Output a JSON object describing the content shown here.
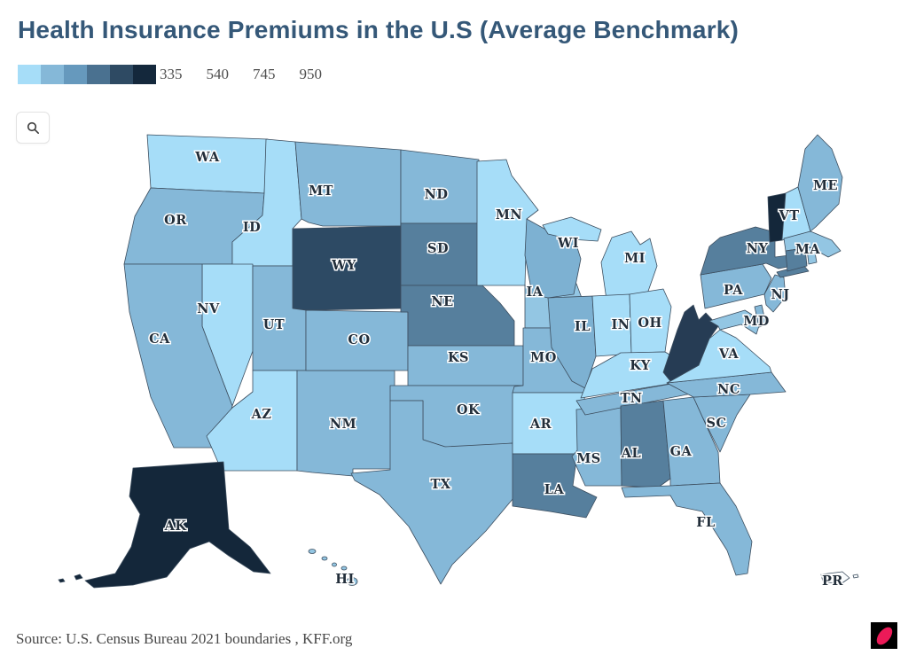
{
  "header": {
    "title": "Health Insurance Premiums in the U.S (Average Benchmark)"
  },
  "legend": {
    "colors": [
      "#a6ddf8",
      "#85b8d8",
      "#6699bd",
      "#4a7190",
      "#2e4a63",
      "#14283c"
    ],
    "labels": [
      "335",
      "540",
      "745",
      "950"
    ]
  },
  "toolbar": {
    "zoom_icon": "magnifier"
  },
  "footer": {
    "source": "Source: U.S. Census Bureau 2021 boundaries , KFF.org"
  },
  "logo": {
    "bg_color": "#000000",
    "dot_color": "#ec1a58"
  },
  "map": {
    "border_color": "#3c4d5e",
    "label_color": "#222e3a",
    "states": [
      {
        "code": "WA",
        "fill": "#a6ddf8",
        "label": [
          234,
          177
        ]
      },
      {
        "code": "OR",
        "fill": "#85b8d8",
        "label": [
          198,
          248
        ]
      },
      {
        "code": "CA",
        "fill": "#85b8d8",
        "label": [
          180,
          382
        ]
      },
      {
        "code": "NV",
        "fill": "#a6ddf8",
        "label": [
          235,
          348
        ]
      },
      {
        "code": "ID",
        "fill": "#a6ddf8",
        "label": [
          284,
          256
        ]
      },
      {
        "code": "MT",
        "fill": "#85b8d8",
        "label": [
          362,
          215
        ]
      },
      {
        "code": "WY",
        "fill": "#2d4a64",
        "label": [
          388,
          299
        ]
      },
      {
        "code": "UT",
        "fill": "#85b8d8",
        "label": [
          309,
          366
        ]
      },
      {
        "code": "AZ",
        "fill": "#a6ddf8",
        "label": [
          295,
          467
        ]
      },
      {
        "code": "CO",
        "fill": "#85b8d8",
        "label": [
          405,
          383
        ]
      },
      {
        "code": "NM",
        "fill": "#85b8d8",
        "label": [
          387,
          478
        ]
      },
      {
        "code": "ND",
        "fill": "#85b8d8",
        "label": [
          492,
          219
        ]
      },
      {
        "code": "SD",
        "fill": "#567f9d",
        "label": [
          494,
          280
        ]
      },
      {
        "code": "NE",
        "fill": "#567f9d",
        "label": [
          499,
          340
        ]
      },
      {
        "code": "KS",
        "fill": "#85b8d8",
        "label": [
          517,
          403
        ]
      },
      {
        "code": "OK",
        "fill": "#85b8d8",
        "label": [
          528,
          462
        ]
      },
      {
        "code": "TX",
        "fill": "#85b8d8",
        "label": [
          497,
          546
        ]
      },
      {
        "code": "MN",
        "fill": "#a6ddf8",
        "label": [
          574,
          242
        ]
      },
      {
        "code": "IA",
        "fill": "#93c6e3",
        "label": [
          603,
          329
        ]
      },
      {
        "code": "MO",
        "fill": "#85b8d8",
        "label": [
          613,
          403
        ]
      },
      {
        "code": "AR",
        "fill": "#a6ddf8",
        "label": [
          610,
          478
        ]
      },
      {
        "code": "LA",
        "fill": "#567f9d",
        "label": [
          625,
          552
        ]
      },
      {
        "code": "WI",
        "fill": "#7db1d2",
        "label": [
          641,
          274
        ]
      },
      {
        "code": "IL",
        "fill": "#7db1d2",
        "label": [
          657,
          368
        ]
      },
      {
        "code": "MS",
        "fill": "#85b8d8",
        "label": [
          664,
          517
        ]
      },
      {
        "code": "MI",
        "fill": "#a6ddf8",
        "label": [
          716,
          291
        ]
      },
      {
        "code": "IN",
        "fill": "#a6ddf8",
        "label": [
          700,
          366
        ]
      },
      {
        "code": "KY",
        "fill": "#a6ddf8",
        "label": [
          722,
          412
        ]
      },
      {
        "code": "TN",
        "fill": "#85b8d8",
        "label": [
          712,
          449
        ]
      },
      {
        "code": "AL",
        "fill": "#567f9d",
        "label": [
          712,
          511
        ]
      },
      {
        "code": "OH",
        "fill": "#a6ddf8",
        "label": [
          733,
          364
        ]
      },
      {
        "code": "GA",
        "fill": "#85b8d8",
        "label": [
          768,
          509
        ]
      },
      {
        "code": "FL",
        "fill": "#85b8d8",
        "label": [
          796,
          589
        ]
      },
      {
        "code": "SC",
        "fill": "#85b8d8",
        "label": [
          808,
          477
        ]
      },
      {
        "code": "NC",
        "fill": "#85b8d8",
        "label": [
          822,
          439
        ]
      },
      {
        "code": "VA",
        "fill": "#a6ddf8",
        "label": [
          822,
          399
        ]
      },
      {
        "code": "WV",
        "fill": "#263c54",
        "label": null
      },
      {
        "code": "PA",
        "fill": "#85b8d8",
        "label": [
          827,
          327
        ]
      },
      {
        "code": "NY",
        "fill": "#567f9d",
        "label": [
          854,
          280
        ]
      },
      {
        "code": "NJ",
        "fill": "#85b8d8",
        "label": [
          880,
          332
        ]
      },
      {
        "code": "DE",
        "fill": "#85b8d8",
        "label": null
      },
      {
        "code": "MD",
        "fill": "#93c6e3",
        "label": [
          853,
          362
        ]
      },
      {
        "code": "VT",
        "fill": "#14273a",
        "label": [
          890,
          243
        ]
      },
      {
        "code": "NH",
        "fill": "#a6ddf8",
        "label": null
      },
      {
        "code": "ME",
        "fill": "#85b8d8",
        "label": [
          931,
          209
        ]
      },
      {
        "code": "MA",
        "fill": "#93c6e3",
        "label": [
          911,
          281
        ]
      },
      {
        "code": "CT",
        "fill": "#567f9d",
        "label": null
      },
      {
        "code": "RI",
        "fill": "#93c6e3",
        "label": null
      },
      {
        "code": "AK",
        "fill": "#14273a",
        "label": [
          198,
          593
        ]
      },
      {
        "code": "HI",
        "fill": "#93c6e3",
        "label": [
          389,
          653
        ]
      },
      {
        "code": "PR",
        "fill": "#f8fbfd",
        "label": [
          939,
          655
        ]
      }
    ]
  },
  "chart_data": {
    "type": "choropleth",
    "title": "Health Insurance Premiums in the U.S (Average Benchmark)",
    "region": "United States (states + AK, HI, PR)",
    "legend_ticks": [
      335,
      540,
      745,
      950
    ],
    "legend_colors": [
      "#a6ddf8",
      "#85b8d8",
      "#6699bd",
      "#4a7190",
      "#2e4a63",
      "#14283c"
    ],
    "bins": [
      {
        "index": 1,
        "color": "#a6ddf8",
        "approx_range": "lowest (~<=335)"
      },
      {
        "index": 2,
        "color": "#85b8d8",
        "approx_range": "~335-540"
      },
      {
        "index": 3,
        "color": "#6699bd",
        "approx_range": "~540-745"
      },
      {
        "index": 4,
        "color": "#4a7190",
        "approx_range": "~745-950"
      },
      {
        "index": 5,
        "color": "#2e4a63",
        "approx_range": "~950+"
      },
      {
        "index": 6,
        "color": "#14283c",
        "approx_range": "highest"
      }
    ],
    "states_by_bin": {
      "1": [
        "WA",
        "ID",
        "NV",
        "AZ",
        "AR",
        "KY",
        "OH",
        "IN",
        "MI",
        "MN",
        "VA",
        "NH"
      ],
      "2": [
        "OR",
        "CA",
        "MT",
        "ND",
        "UT",
        "CO",
        "NM",
        "TX",
        "OK",
        "KS",
        "MO",
        "IA",
        "WI",
        "IL",
        "TN",
        "NC",
        "SC",
        "GA",
        "FL",
        "MS",
        "PA",
        "NJ",
        "DE",
        "MD",
        "ME",
        "MA",
        "RI",
        "HI"
      ],
      "4": [
        "SD",
        "NE",
        "LA",
        "AL",
        "NY",
        "CT"
      ],
      "5": [
        "WY",
        "WV"
      ],
      "6": [
        "VT",
        "AK"
      ],
      "no_data": [
        "PR"
      ]
    },
    "source": "U.S. Census Bureau 2021 boundaries , KFF.org"
  }
}
